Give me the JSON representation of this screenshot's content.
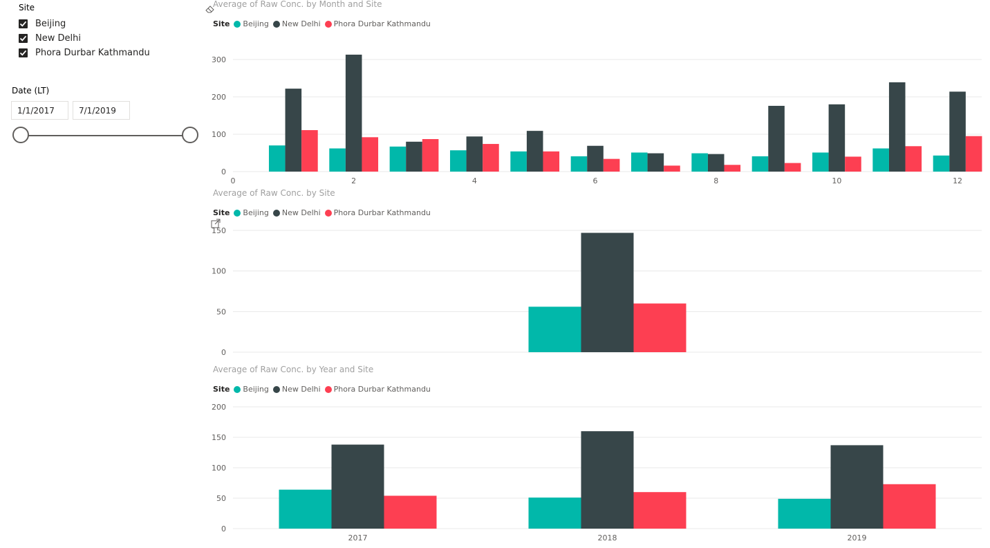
{
  "slicers": {
    "site": {
      "title": "Site",
      "items": [
        {
          "label": "Beijing",
          "checked": true
        },
        {
          "label": "New Delhi",
          "checked": true
        },
        {
          "label": "Phora Durbar Kathmandu",
          "checked": true
        }
      ]
    },
    "date": {
      "title": "Date (LT)",
      "start": "1/1/2017",
      "end": "7/1/2019",
      "range_fraction": [
        0,
        1
      ]
    }
  },
  "colors": {
    "Beijing": "#01B8AA",
    "New Delhi": "#374649",
    "Phora Durbar Kathmandu": "#FD3F52"
  },
  "icons": {
    "eraser": "eraser-icon",
    "focus_mode": "focus-mode-icon"
  },
  "charts": [
    {
      "title": "Average of Raw Conc. by Month and Site",
      "legend_title": "Site",
      "legend": [
        "Beijing",
        "New Delhi",
        "Phora Durbar Kathmandu"
      ]
    },
    {
      "title": "Average of Raw Conc. by Site",
      "legend_title": "Site",
      "legend": [
        "Beijing",
        "New Delhi",
        "Phora Durbar Kathmandu"
      ]
    },
    {
      "title": "Average of Raw Conc. by Year and Site",
      "legend_title": "Site",
      "legend": [
        "Beijing",
        "New Delhi",
        "Phora Durbar Kathmandu"
      ]
    }
  ],
  "chart_data": [
    {
      "type": "bar",
      "title": "Average of Raw Conc. by Month and Site",
      "legend_title": "Site",
      "x": [
        1,
        2,
        3,
        4,
        5,
        6,
        7,
        8,
        9,
        10,
        11,
        12
      ],
      "xlim": [
        0,
        12.4
      ],
      "xticks": [
        0,
        2,
        4,
        6,
        8,
        10,
        12
      ],
      "ylim": [
        0,
        300
      ],
      "yticks": [
        0,
        100,
        200,
        300
      ],
      "grid": true,
      "legend_position": "top-left",
      "series": [
        {
          "name": "Beijing",
          "values": [
            70,
            62,
            67,
            57,
            54,
            41,
            51,
            49,
            41,
            51,
            62,
            43
          ]
        },
        {
          "name": "New Delhi",
          "values": [
            222,
            313,
            80,
            94,
            109,
            69,
            49,
            47,
            176,
            180,
            239,
            214
          ]
        },
        {
          "name": "Phora Durbar Kathmandu",
          "values": [
            111,
            92,
            87,
            74,
            54,
            34,
            16,
            18,
            23,
            40,
            68,
            95
          ]
        }
      ]
    },
    {
      "type": "bar",
      "title": "Average of Raw Conc. by Site",
      "legend_title": "Site",
      "ylim": [
        0,
        150
      ],
      "yticks": [
        0,
        50,
        100,
        150
      ],
      "grid": true,
      "legend_position": "top-left",
      "series": [
        {
          "name": "Beijing",
          "values": [
            56
          ]
        },
        {
          "name": "New Delhi",
          "values": [
            147
          ]
        },
        {
          "name": "Phora Durbar Kathmandu",
          "values": [
            60
          ]
        }
      ]
    },
    {
      "type": "bar",
      "title": "Average of Raw Conc. by Year and Site",
      "legend_title": "Site",
      "categories": [
        "2017",
        "2018",
        "2019"
      ],
      "ylim": [
        0,
        200
      ],
      "yticks": [
        0,
        50,
        100,
        150,
        200
      ],
      "grid": true,
      "legend_position": "top-left",
      "series": [
        {
          "name": "Beijing",
          "values": [
            64,
            51,
            49
          ]
        },
        {
          "name": "New Delhi",
          "values": [
            138,
            160,
            137
          ]
        },
        {
          "name": "Phora Durbar Kathmandu",
          "values": [
            54,
            60,
            73
          ]
        }
      ]
    }
  ]
}
